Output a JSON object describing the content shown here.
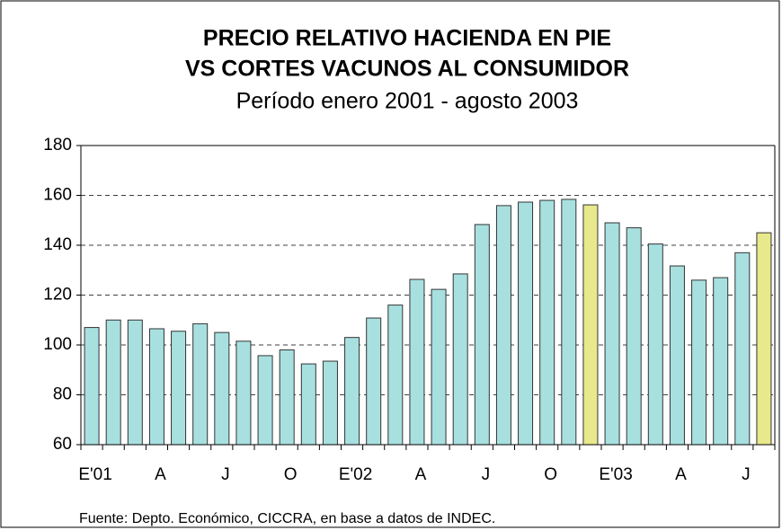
{
  "chart_data": {
    "type": "bar",
    "title": [
      "PRECIO RELATIVO HACIENDA EN PIE",
      "VS CORTES VACUNOS AL CONSUMIDOR"
    ],
    "subtitle": "Período enero 2001 - agosto 2003",
    "source": "Fuente: Depto. Económico, CICCRA, en base a datos de INDEC.",
    "categories": [
      "E'01",
      null,
      null,
      "A",
      null,
      null,
      "J",
      null,
      null,
      "O",
      null,
      null,
      "E'02",
      null,
      null,
      "A",
      null,
      null,
      "J",
      null,
      null,
      "O",
      null,
      null,
      "E'03",
      null,
      null,
      "A",
      null,
      null,
      "J",
      null
    ],
    "values": [
      107,
      110,
      110,
      106.5,
      105.5,
      108.5,
      105,
      101.5,
      95.7,
      98,
      92.4,
      93.5,
      103,
      110.8,
      116,
      126.3,
      122.3,
      128.5,
      148.3,
      155.9,
      157.3,
      158,
      158.4,
      156.2,
      149,
      147,
      140.5,
      131.7,
      126,
      127,
      137,
      145
    ],
    "colors": [
      "#a8e0e0",
      "#a8e0e0",
      "#a8e0e0",
      "#a8e0e0",
      "#a8e0e0",
      "#a8e0e0",
      "#a8e0e0",
      "#a8e0e0",
      "#a8e0e0",
      "#a8e0e0",
      "#a8e0e0",
      "#a8e0e0",
      "#a8e0e0",
      "#a8e0e0",
      "#a8e0e0",
      "#a8e0e0",
      "#a8e0e0",
      "#a8e0e0",
      "#a8e0e0",
      "#a8e0e0",
      "#a8e0e0",
      "#a8e0e0",
      "#a8e0e0",
      "#e8e88c",
      "#a8e0e0",
      "#a8e0e0",
      "#a8e0e0",
      "#a8e0e0",
      "#a8e0e0",
      "#a8e0e0",
      "#a8e0e0",
      "#e8e88c"
    ],
    "ylim": [
      60,
      180
    ],
    "yticks": [
      60,
      80,
      100,
      120,
      140,
      160,
      180
    ],
    "grid": true
  }
}
